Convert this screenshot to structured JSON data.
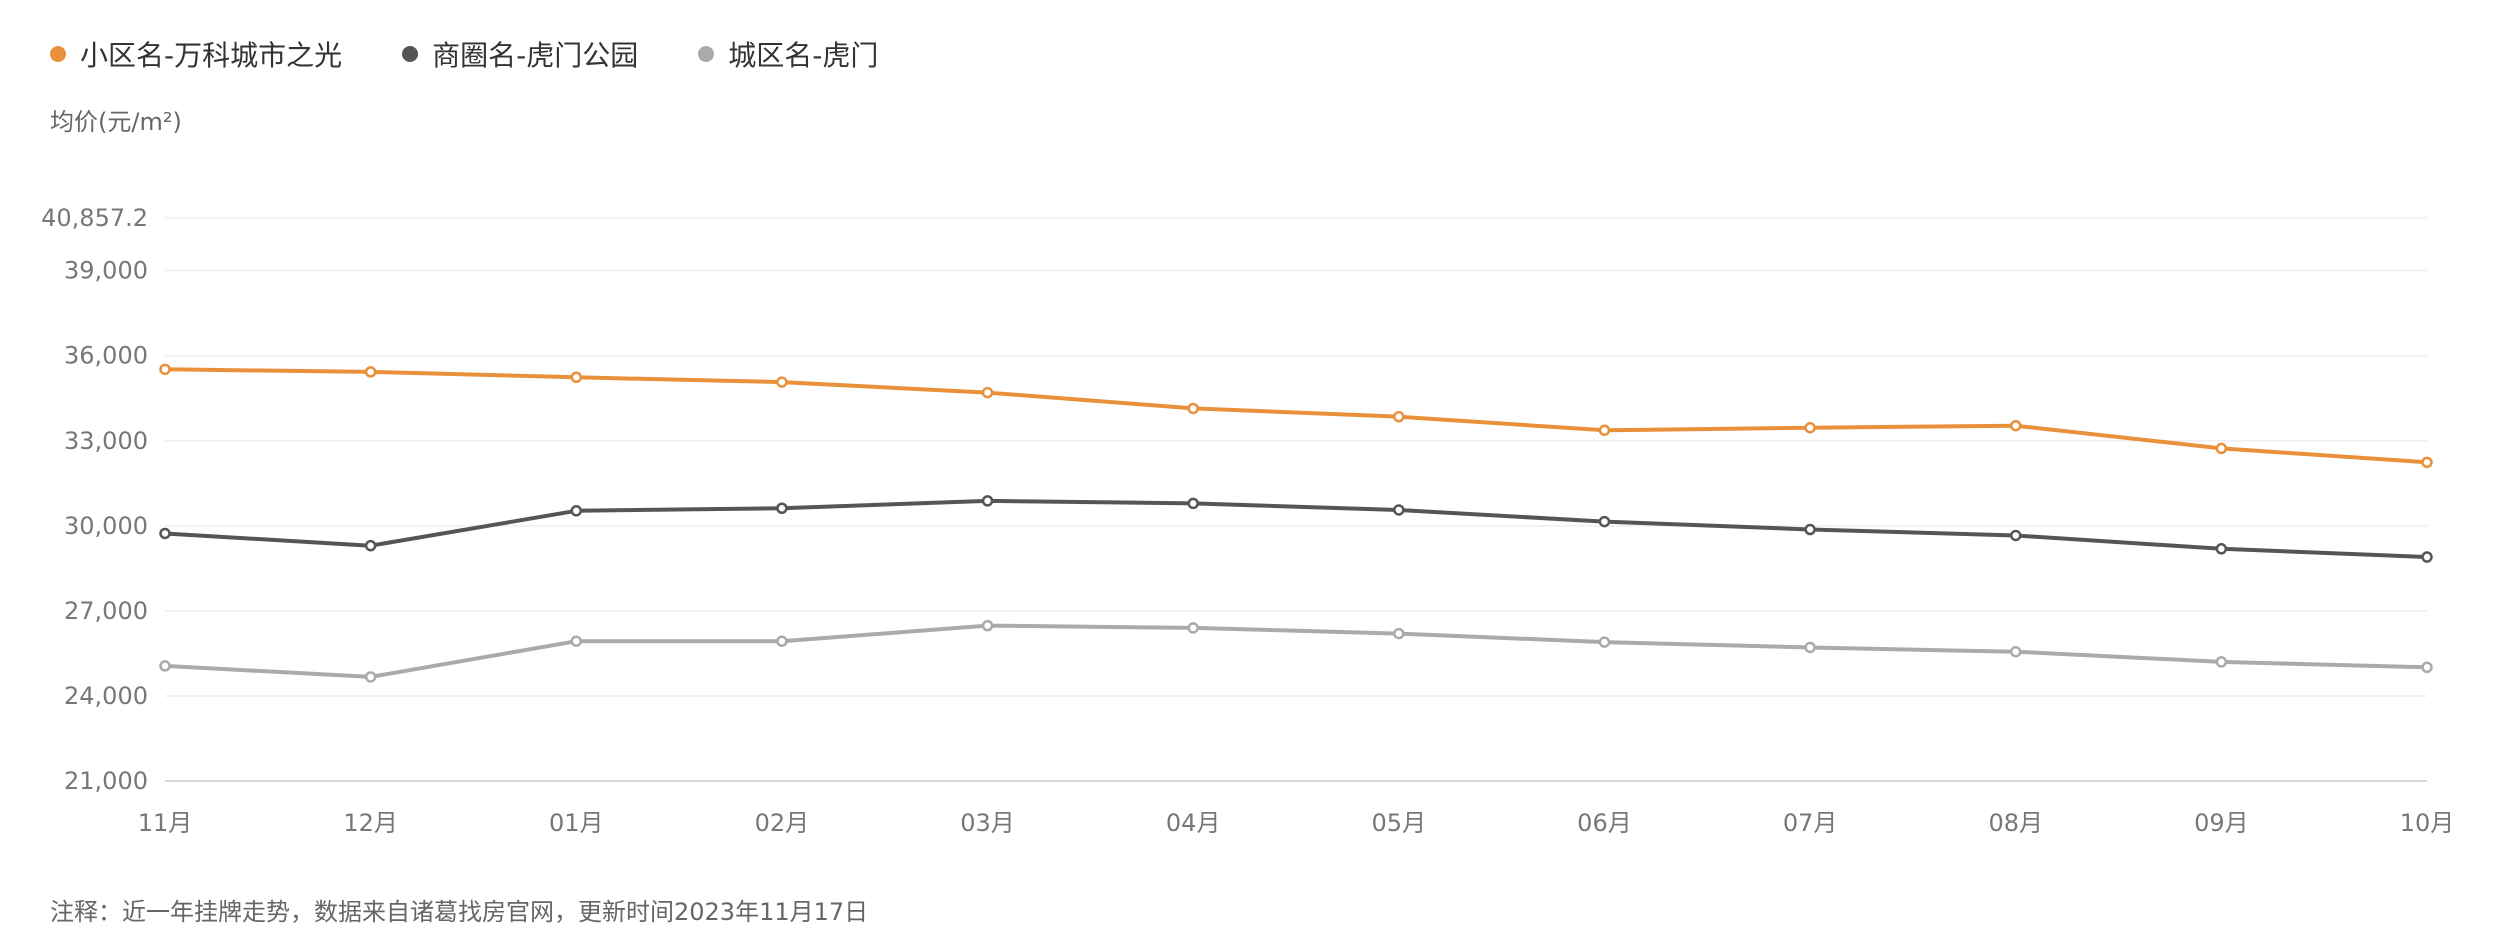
{
  "legend": {
    "items": [
      {
        "label": "小区名-万科城市之光",
        "color": "#E8903A"
      },
      {
        "label": "商圈名-虎门公园",
        "color": "#555555"
      },
      {
        "label": "城区名-虎门",
        "color": "#AAAAAA"
      }
    ]
  },
  "unit_label": "均价(元/m²)",
  "footnote": "注释：近一年挂牌走势，数据来自诸葛找房官网，更新时间2023年11月17日",
  "chart_data": {
    "type": "line",
    "title": "",
    "xlabel": "",
    "ylabel": "均价(元/m²)",
    "categories": [
      "11月",
      "12月",
      "01月",
      "02月",
      "03月",
      "04月",
      "05月",
      "06月",
      "07月",
      "08月",
      "09月",
      "10月"
    ],
    "ylim": [
      21000,
      40857.2
    ],
    "yticks": [
      21000,
      24000,
      27000,
      30000,
      33000,
      36000,
      39000,
      40857.2
    ],
    "ytick_labels": [
      "21,000",
      "24,000",
      "27,000",
      "30,000",
      "33,000",
      "36,000",
      "39,000",
      "40,857.2"
    ],
    "grid": true,
    "legend_position": "top-left",
    "series": [
      {
        "name": "小区名-万科城市之光",
        "color": "#E8903A",
        "values": [
          35520,
          35430,
          35240,
          35070,
          34700,
          34140,
          33850,
          33370,
          33460,
          33530,
          32730,
          32240
        ]
      },
      {
        "name": "商圈名-虎门公园",
        "color": "#555555",
        "values": [
          29730,
          29300,
          30530,
          30620,
          30880,
          30790,
          30560,
          30150,
          29870,
          29660,
          29190,
          28900
        ]
      },
      {
        "name": "城区名-虎门",
        "color": "#AAAAAA",
        "values": [
          25060,
          24670,
          25930,
          25930,
          26480,
          26400,
          26200,
          25900,
          25710,
          25560,
          25200,
          25010
        ]
      }
    ]
  }
}
